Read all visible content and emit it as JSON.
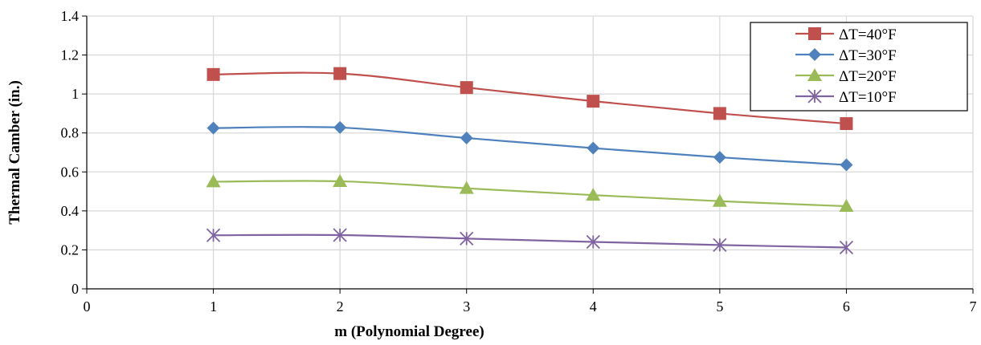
{
  "chart_data": {
    "type": "line",
    "title": "",
    "xlabel": "m (Polynomial Degree)",
    "ylabel": "Thermal Camber (in.)",
    "xlim": [
      0,
      7
    ],
    "ylim": [
      0,
      1.4
    ],
    "x_ticks": [
      "0",
      "1",
      "2",
      "3",
      "4",
      "5",
      "6",
      "7"
    ],
    "y_ticks": [
      "0",
      "0.2",
      "0.4",
      "0.6",
      "0.8",
      "1",
      "1.2",
      "1.4"
    ],
    "grid": true,
    "legend_position": "top-right",
    "x": [
      1,
      2,
      3,
      4,
      5,
      6
    ],
    "series": [
      {
        "name": "ΔT=40°F",
        "color": "#C0504D",
        "marker": "square",
        "values": [
          1.1,
          1.105,
          1.033,
          0.963,
          0.9,
          0.848
        ]
      },
      {
        "name": "ΔT=30°F",
        "color": "#4F81BD",
        "marker": "diamond",
        "values": [
          0.825,
          0.828,
          0.774,
          0.722,
          0.675,
          0.636
        ]
      },
      {
        "name": "ΔT=20°F",
        "color": "#9BBB59",
        "marker": "triangle",
        "values": [
          0.55,
          0.552,
          0.516,
          0.481,
          0.45,
          0.424
        ]
      },
      {
        "name": "ΔT=10°F",
        "color": "#8064A2",
        "marker": "star",
        "values": [
          0.275,
          0.276,
          0.258,
          0.241,
          0.225,
          0.212
        ]
      }
    ]
  }
}
